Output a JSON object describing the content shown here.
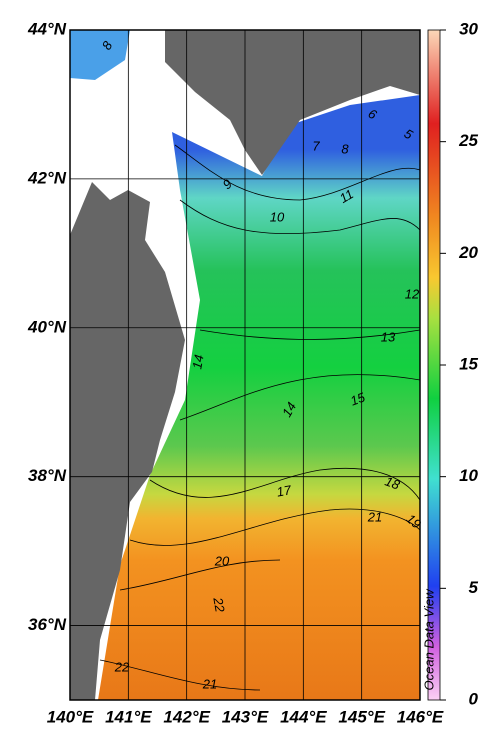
{
  "map": {
    "lon_ticks": [
      {
        "value": 140,
        "label": "140°E"
      },
      {
        "value": 141,
        "label": "141°E"
      },
      {
        "value": 142,
        "label": "142°E"
      },
      {
        "value": 143,
        "label": "143°E"
      },
      {
        "value": 144,
        "label": "144°E"
      },
      {
        "value": 145,
        "label": "145°E"
      },
      {
        "value": 146,
        "label": "146°E"
      }
    ],
    "lat_ticks": [
      {
        "value": 36,
        "label": "36°N"
      },
      {
        "value": 38,
        "label": "38°N"
      },
      {
        "value": 40,
        "label": "40°N"
      },
      {
        "value": 42,
        "label": "42°N"
      },
      {
        "value": 44,
        "label": "44°N"
      }
    ],
    "lon_lim": [
      140,
      146
    ],
    "lat_lim": [
      35,
      44
    ],
    "colorbar": {
      "lim": [
        0,
        30
      ],
      "ticks": [
        0,
        5,
        10,
        15,
        20,
        25,
        30
      ]
    },
    "contour_labels": [
      "8",
      "6",
      "5",
      "7",
      "8",
      "9",
      "10",
      "11",
      "12",
      "13",
      "14",
      "14",
      "15",
      "17",
      "18",
      "19",
      "20",
      "21",
      "22",
      "22",
      "21"
    ],
    "watermark": "Ocean Data View"
  }
}
